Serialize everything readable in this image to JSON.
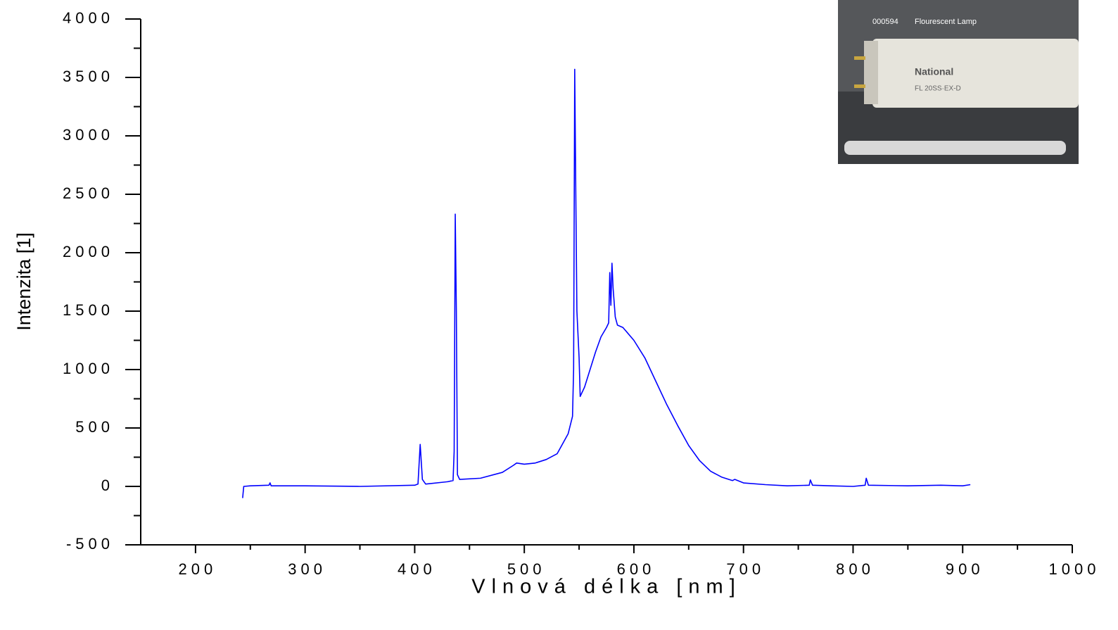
{
  "chart_data": {
    "type": "line",
    "x_label": "Vlnová délka [nm]",
    "y_label": "Intenzita [1]",
    "x": [
      243,
      244,
      250,
      267,
      268,
      269,
      300,
      350,
      400,
      403,
      405,
      407,
      410,
      430,
      435,
      436,
      437,
      438,
      439,
      441,
      460,
      480,
      490,
      493,
      500,
      510,
      520,
      530,
      540,
      544,
      545,
      546,
      547,
      548,
      550,
      551,
      555,
      560,
      565,
      570,
      575,
      577,
      578,
      579,
      580,
      581,
      583,
      585,
      590,
      600,
      610,
      620,
      630,
      640,
      650,
      660,
      670,
      680,
      690,
      692,
      700,
      720,
      740,
      760,
      761,
      763,
      780,
      800,
      811,
      812,
      814,
      850,
      880,
      900,
      907
    ],
    "series": [
      {
        "color": "#0000ff",
        "values": [
          -100,
          0,
          5,
          10,
          30,
          5,
          5,
          0,
          10,
          20,
          360,
          60,
          20,
          40,
          50,
          300,
          2330,
          1500,
          100,
          60,
          70,
          120,
          180,
          200,
          190,
          200,
          230,
          280,
          450,
          600,
          1000,
          3570,
          2500,
          1500,
          1100,
          770,
          850,
          1000,
          1150,
          1280,
          1360,
          1400,
          1830,
          1550,
          1910,
          1700,
          1450,
          1380,
          1360,
          1250,
          1100,
          900,
          700,
          520,
          350,
          220,
          130,
          80,
          50,
          60,
          30,
          15,
          5,
          10,
          55,
          10,
          5,
          0,
          10,
          70,
          10,
          5,
          10,
          5,
          15
        ]
      }
    ],
    "xlim": [
      150,
      1000
    ],
    "ylim": [
      -500,
      4000
    ],
    "xticks": [
      200,
      300,
      400,
      500,
      600,
      700,
      800,
      900,
      1000
    ],
    "yticks": [
      -500,
      0,
      500,
      1000,
      1500,
      2000,
      2500,
      3000,
      3500,
      4000
    ],
    "xminorticks": [
      250,
      350,
      450,
      550,
      650,
      750,
      850,
      950
    ],
    "yminorticks": [
      -250,
      250,
      750,
      1250,
      1750,
      2250,
      2750,
      3250,
      3750
    ],
    "grid": false
  },
  "inset": {
    "code": "000594",
    "caption": "Flourescent Lamp",
    "brand": "National",
    "model": "FL 20SS·EX-D"
  }
}
